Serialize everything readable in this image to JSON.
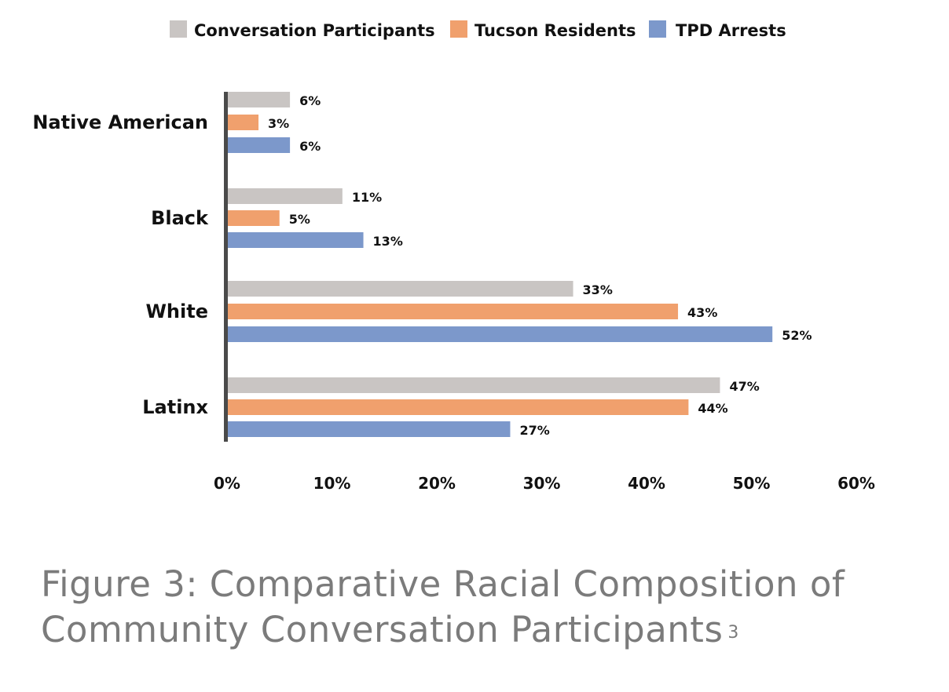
{
  "chart_data": {
    "type": "bar",
    "orientation": "horizontal",
    "categories": [
      "Native American",
      "Black",
      "White",
      "Latinx"
    ],
    "series": [
      {
        "name": "Conversation Participants",
        "color": "#c9c5c3",
        "values": [
          6,
          11,
          33,
          47
        ],
        "labels": [
          "6%",
          "11%",
          "33%",
          "47%"
        ]
      },
      {
        "name": "Tucson Residents",
        "color": "#f0a06d",
        "values": [
          3,
          5,
          43,
          44
        ],
        "labels": [
          "3%",
          "5%",
          "43%",
          "44%"
        ]
      },
      {
        "name": "TPD Arrests",
        "color": "#7c98cb",
        "values": [
          6,
          13,
          52,
          27
        ],
        "labels": [
          "6%",
          "13%",
          "52%",
          "27%"
        ]
      }
    ],
    "xlim": [
      0,
      60
    ],
    "xticks": [
      0,
      10,
      20,
      30,
      40,
      50,
      60
    ],
    "xtick_labels": [
      "0%",
      "10%",
      "20%",
      "30%",
      "40%",
      "50%",
      "60%"
    ],
    "legend_position": "top",
    "grid": false
  },
  "caption": {
    "line1": "Figure 3: Comparative Racial Composition of",
    "line2": "Community Conversation Participants",
    "superscript": "3"
  }
}
